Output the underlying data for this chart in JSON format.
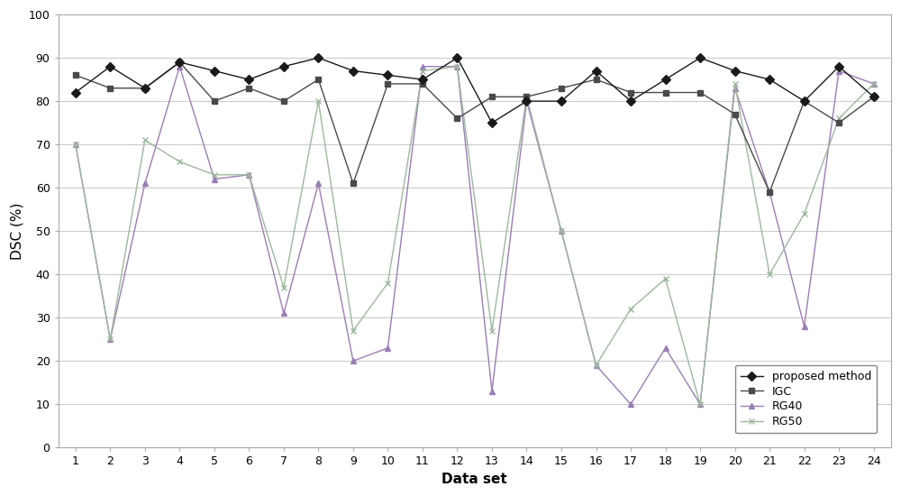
{
  "x": [
    1,
    2,
    3,
    4,
    5,
    6,
    7,
    8,
    9,
    10,
    11,
    12,
    13,
    14,
    15,
    16,
    17,
    18,
    19,
    20,
    21,
    22,
    23,
    24
  ],
  "proposed_method": [
    82,
    88,
    83,
    89,
    87,
    85,
    88,
    90,
    87,
    86,
    85,
    90,
    75,
    80,
    80,
    87,
    80,
    85,
    90,
    87,
    85,
    80,
    88,
    81
  ],
  "IGC": [
    86,
    83,
    83,
    89,
    80,
    83,
    80,
    85,
    61,
    84,
    84,
    76,
    81,
    81,
    83,
    85,
    82,
    82,
    82,
    77,
    59,
    80,
    75,
    81
  ],
  "RG40": [
    70,
    25,
    61,
    88,
    62,
    63,
    31,
    61,
    20,
    23,
    88,
    88,
    13,
    80,
    50,
    19,
    10,
    23,
    10,
    83,
    59,
    28,
    87,
    84
  ],
  "RG50": [
    70,
    25,
    71,
    66,
    63,
    63,
    37,
    80,
    27,
    38,
    87,
    88,
    27,
    81,
    50,
    19,
    32,
    39,
    10,
    84,
    40,
    54,
    76,
    84
  ],
  "xlabel": "Data set",
  "ylabel": "DSC (%)",
  "ylim": [
    0,
    100
  ],
  "yticks": [
    0,
    10,
    20,
    30,
    40,
    50,
    60,
    70,
    80,
    90,
    100
  ],
  "proposed_color": "#1a1a1a",
  "IGC_color": "#4a4a4a",
  "RG40_color": "#9b7db5",
  "RG50_color": "#9db89d",
  "legend_labels": [
    "proposed method",
    "IGC",
    "RG40",
    "RG50"
  ],
  "figsize": [
    10.0,
    5.5
  ],
  "dpi": 100
}
